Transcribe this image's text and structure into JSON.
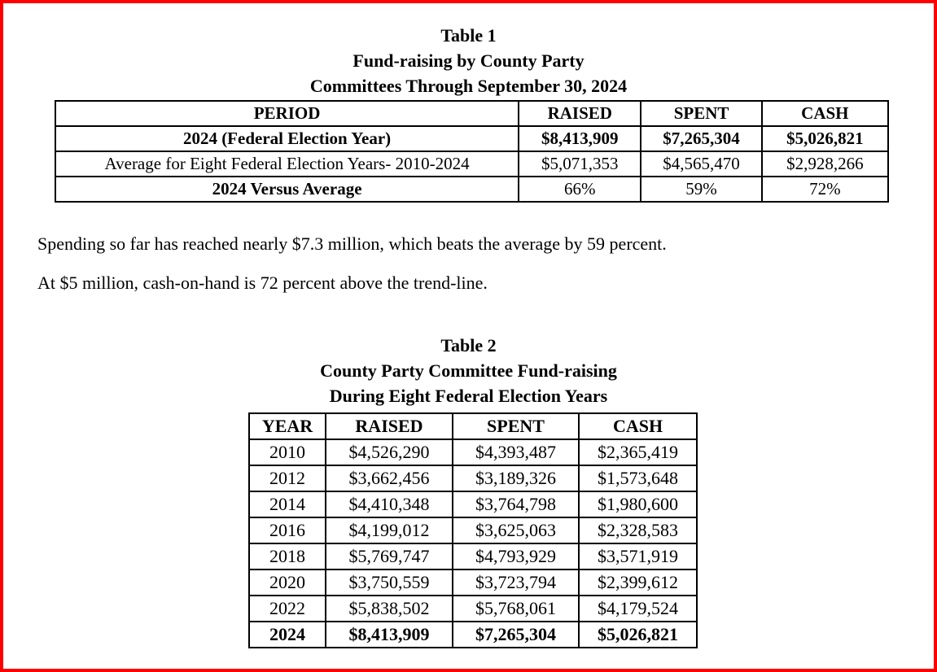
{
  "page": {
    "border_color": "#ff0000",
    "background_color": "#ffffff",
    "text_color": "#000000"
  },
  "table1": {
    "title_lines": [
      "Table 1",
      "Fund-raising by County Party",
      "Committees Through September 30, 2024"
    ],
    "columns": [
      "PERIOD",
      "RAISED",
      "SPENT",
      "CASH"
    ],
    "rows": [
      {
        "period": "2024 (Federal Election Year)",
        "raised": "$8,413,909",
        "spent": "$7,265,304",
        "cash": "$5,026,821",
        "label_bold": true,
        "values_bold": true
      },
      {
        "period": "Average for Eight Federal Election Years- 2010-2024",
        "raised": "$5,071,353",
        "spent": "$4,565,470",
        "cash": "$2,928,266",
        "label_bold": false,
        "values_bold": false
      },
      {
        "period": "2024 Versus Average",
        "raised": "66%",
        "spent": "59%",
        "cash": "72%",
        "label_bold": true,
        "values_bold": false
      }
    ]
  },
  "paragraphs": [
    "Spending so far has reached nearly $7.3 million, which beats the average by 59 percent.",
    "At $5 million, cash-on-hand is 72 percent above the trend-line."
  ],
  "table2": {
    "title_lines": [
      "Table 2",
      "County Party Committee Fund-raising",
      "During Eight Federal Election Years"
    ],
    "columns": [
      "YEAR",
      "RAISED",
      "SPENT",
      "CASH"
    ],
    "rows": [
      {
        "year": "2010",
        "raised": "$4,526,290",
        "spent": "$4,393,487",
        "cash": "$2,365,419",
        "bold": false
      },
      {
        "year": "2012",
        "raised": "$3,662,456",
        "spent": "$3,189,326",
        "cash": "$1,573,648",
        "bold": false
      },
      {
        "year": "2014",
        "raised": "$4,410,348",
        "spent": "$3,764,798",
        "cash": "$1,980,600",
        "bold": false
      },
      {
        "year": "2016",
        "raised": "$4,199,012",
        "spent": "$3,625,063",
        "cash": "$2,328,583",
        "bold": false
      },
      {
        "year": "2018",
        "raised": "$5,769,747",
        "spent": "$4,793,929",
        "cash": "$3,571,919",
        "bold": false
      },
      {
        "year": "2020",
        "raised": "$3,750,559",
        "spent": "$3,723,794",
        "cash": "$2,399,612",
        "bold": false
      },
      {
        "year": "2022",
        "raised": "$5,838,502",
        "spent": "$5,768,061",
        "cash": "$4,179,524",
        "bold": false
      },
      {
        "year": "2024",
        "raised": "$8,413,909",
        "spent": "$7,265,304",
        "cash": "$5,026,821",
        "bold": true
      }
    ]
  }
}
